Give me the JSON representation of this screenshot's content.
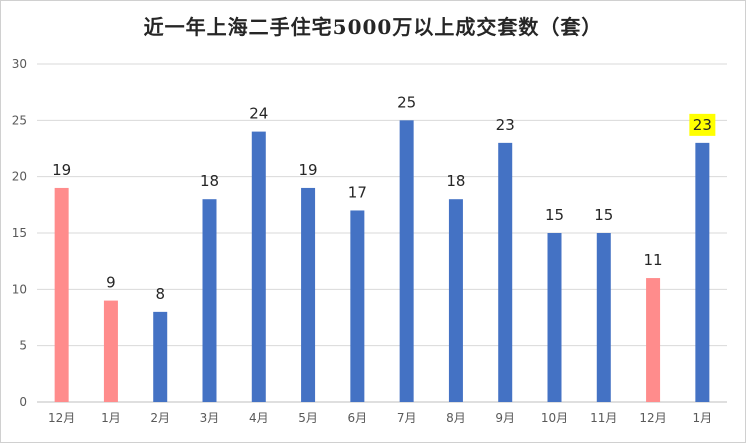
{
  "chart_data": {
    "type": "bar",
    "title": "近一年上海二手住宅5000万以上成交套数（套）",
    "categories": [
      "12月",
      "1月",
      "2月",
      "3月",
      "4月",
      "5月",
      "6月",
      "7月",
      "8月",
      "9月",
      "10月",
      "11月",
      "12月",
      "1月"
    ],
    "values": [
      19,
      9,
      8,
      18,
      24,
      19,
      17,
      25,
      18,
      23,
      15,
      15,
      11,
      23
    ],
    "bar_colors": [
      "#ff8c8c",
      "#ff8c8c",
      "#4472c4",
      "#4472c4",
      "#4472c4",
      "#4472c4",
      "#4472c4",
      "#4472c4",
      "#4472c4",
      "#4472c4",
      "#4472c4",
      "#4472c4",
      "#ff8c8c",
      "#4472c4"
    ],
    "highlighted_label_index": 13,
    "highlight_color": "#ffff00",
    "ylim": [
      0,
      30
    ],
    "yticks": [
      0,
      5,
      10,
      15,
      20,
      25,
      30
    ],
    "grid": true,
    "gridline_color": "#d9d9d9",
    "xlabel": "",
    "ylabel": ""
  }
}
